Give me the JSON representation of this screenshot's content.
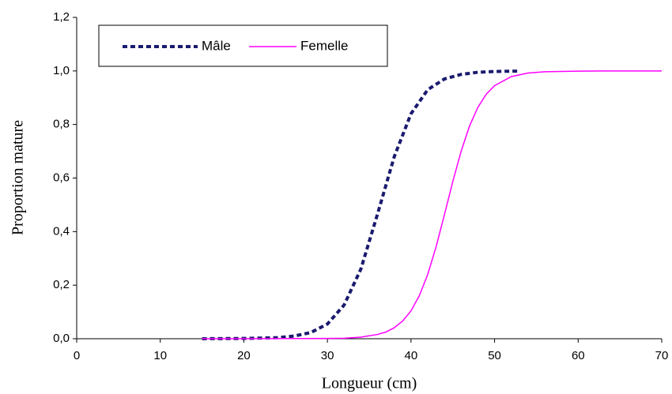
{
  "chart_data": {
    "type": "line",
    "x_label": "Longueur (cm)",
    "y_label": "Proportion mature",
    "xlim": [
      0,
      70
    ],
    "xticks": [
      0,
      10,
      20,
      30,
      40,
      50,
      60,
      70
    ],
    "ylim": [
      0,
      1.2
    ],
    "yticks": [
      {
        "value": 0,
        "label": "0,0"
      },
      {
        "value": 0.2,
        "label": "0,2"
      },
      {
        "value": 0.4,
        "label": "0,4"
      },
      {
        "value": 0.6,
        "label": "0,6"
      },
      {
        "value": 0.8,
        "label": "0,8"
      },
      {
        "value": 1.0,
        "label": "1,0"
      },
      {
        "value": 1.2,
        "label": "1,2"
      }
    ],
    "legend": "top-left",
    "series": [
      {
        "name": "Mâle",
        "color": "#1a1a6e",
        "style": "dotted",
        "x": [
          15,
          20,
          24,
          26,
          28,
          30,
          32,
          34,
          36,
          38,
          40,
          42,
          44,
          46,
          48,
          50,
          52,
          53
        ],
        "values": [
          0.0,
          0.001,
          0.004,
          0.01,
          0.023,
          0.055,
          0.126,
          0.26,
          0.466,
          0.68,
          0.84,
          0.93,
          0.97,
          0.987,
          0.995,
          0.998,
          0.999,
          0.999
        ]
      },
      {
        "name": "Femelle",
        "color": "#ff00ff",
        "style": "solid",
        "x": [
          15,
          30,
          32,
          34,
          36,
          37,
          38,
          39,
          40,
          41,
          42,
          43,
          44,
          45,
          46,
          47,
          48,
          49,
          50,
          52,
          54,
          56,
          60,
          63,
          70
        ],
        "values": [
          0.0,
          0.001,
          0.002,
          0.006,
          0.016,
          0.025,
          0.041,
          0.066,
          0.104,
          0.161,
          0.24,
          0.343,
          0.463,
          0.587,
          0.7,
          0.794,
          0.864,
          0.913,
          0.945,
          0.979,
          0.992,
          0.997,
          0.999,
          1.0,
          1.0
        ]
      }
    ]
  }
}
